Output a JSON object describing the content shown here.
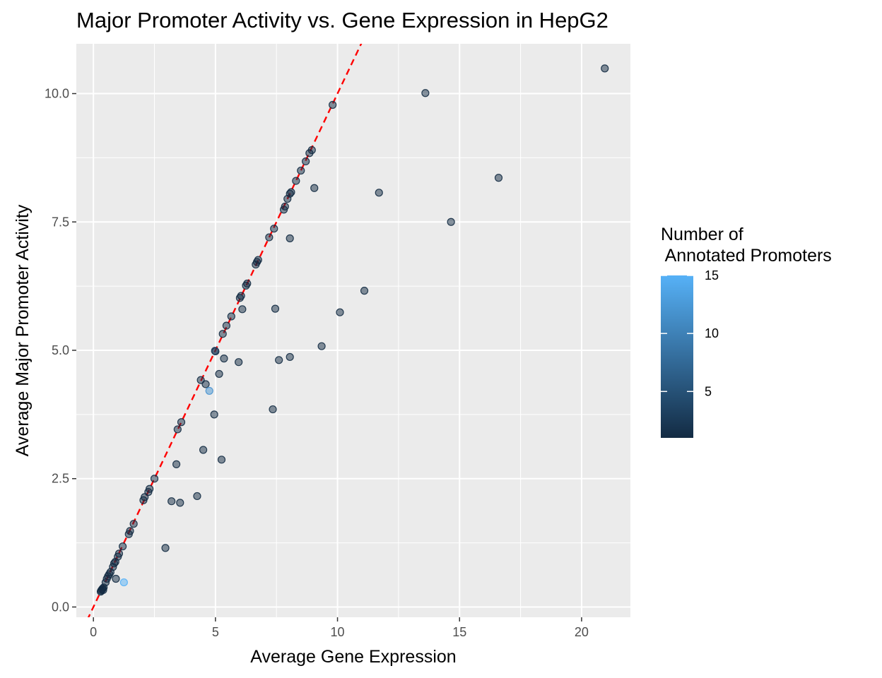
{
  "chart_data": {
    "type": "scatter",
    "title": "Major Promoter Activity vs. Gene Expression in HepG2",
    "xlabel": "Average Gene Expression",
    "ylabel": "Average Major Promoter Activity",
    "xlim": [
      -0.7,
      22
    ],
    "ylim": [
      -0.2,
      10.97
    ],
    "x_ticks": [
      0,
      5,
      10,
      15,
      20
    ],
    "x_tick_labels": [
      "0",
      "5",
      "10",
      "15",
      "20"
    ],
    "y_ticks": [
      0,
      2.5,
      5,
      7.5,
      10
    ],
    "y_tick_labels": [
      "0.0",
      "2.5",
      "5.0",
      "7.5",
      "10.0"
    ],
    "background": "#ebebeb",
    "grid": true,
    "reference_line": {
      "type": "identity",
      "slope": 1,
      "intercept": 0,
      "color": "#ff0000",
      "style": "dashed"
    },
    "color_scale": {
      "title_lines": [
        "Number of",
        " Annotated Promoters"
      ],
      "range": [
        1,
        15
      ],
      "low_color": "#132b43",
      "high_color": "#56b1f7",
      "breaks": [
        5,
        10,
        15
      ],
      "break_labels": [
        "5",
        "10",
        "15"
      ],
      "legend_position": "right"
    },
    "point_alpha": 0.5,
    "points": [
      {
        "x": 0.3,
        "y": 0.3,
        "n": 1
      },
      {
        "x": 0.32,
        "y": 0.32,
        "n": 1
      },
      {
        "x": 0.35,
        "y": 0.34,
        "n": 1
      },
      {
        "x": 0.38,
        "y": 0.36,
        "n": 1
      },
      {
        "x": 0.42,
        "y": 0.38,
        "n": 1
      },
      {
        "x": 0.4,
        "y": 0.33,
        "n": 1
      },
      {
        "x": 0.5,
        "y": 0.48,
        "n": 1
      },
      {
        "x": 0.55,
        "y": 0.55,
        "n": 1
      },
      {
        "x": 0.6,
        "y": 0.6,
        "n": 1
      },
      {
        "x": 0.65,
        "y": 0.64,
        "n": 1
      },
      {
        "x": 0.7,
        "y": 0.68,
        "n": 1
      },
      {
        "x": 0.8,
        "y": 0.78,
        "n": 1
      },
      {
        "x": 0.85,
        "y": 0.85,
        "n": 1
      },
      {
        "x": 0.9,
        "y": 0.88,
        "n": 1
      },
      {
        "x": 0.92,
        "y": 0.55,
        "n": 1
      },
      {
        "x": 1.0,
        "y": 0.98,
        "n": 1
      },
      {
        "x": 1.05,
        "y": 1.04,
        "n": 1
      },
      {
        "x": 1.2,
        "y": 1.18,
        "n": 1
      },
      {
        "x": 1.25,
        "y": 0.48,
        "n": 15
      },
      {
        "x": 1.45,
        "y": 1.42,
        "n": 1
      },
      {
        "x": 1.5,
        "y": 1.48,
        "n": 1
      },
      {
        "x": 1.65,
        "y": 1.62,
        "n": 1
      },
      {
        "x": 2.05,
        "y": 2.08,
        "n": 1
      },
      {
        "x": 2.1,
        "y": 2.14,
        "n": 1
      },
      {
        "x": 2.25,
        "y": 2.24,
        "n": 1
      },
      {
        "x": 2.3,
        "y": 2.3,
        "n": 1
      },
      {
        "x": 2.5,
        "y": 2.5,
        "n": 1
      },
      {
        "x": 2.95,
        "y": 1.15,
        "n": 1
      },
      {
        "x": 3.2,
        "y": 2.06,
        "n": 1
      },
      {
        "x": 3.4,
        "y": 2.78,
        "n": 1
      },
      {
        "x": 3.45,
        "y": 3.46,
        "n": 1
      },
      {
        "x": 3.55,
        "y": 2.03,
        "n": 1
      },
      {
        "x": 3.6,
        "y": 3.6,
        "n": 1
      },
      {
        "x": 4.25,
        "y": 2.16,
        "n": 1
      },
      {
        "x": 4.4,
        "y": 4.42,
        "n": 1
      },
      {
        "x": 4.5,
        "y": 3.06,
        "n": 1
      },
      {
        "x": 4.6,
        "y": 4.34,
        "n": 1
      },
      {
        "x": 4.75,
        "y": 4.21,
        "n": 12
      },
      {
        "x": 4.95,
        "y": 3.75,
        "n": 1
      },
      {
        "x": 5.0,
        "y": 4.98,
        "n": 1
      },
      {
        "x": 4.98,
        "y": 4.99,
        "n": 3
      },
      {
        "x": 5.15,
        "y": 4.54,
        "n": 1
      },
      {
        "x": 5.25,
        "y": 2.87,
        "n": 1
      },
      {
        "x": 5.3,
        "y": 5.32,
        "n": 1
      },
      {
        "x": 5.35,
        "y": 4.84,
        "n": 1
      },
      {
        "x": 5.45,
        "y": 5.48,
        "n": 1
      },
      {
        "x": 5.65,
        "y": 5.66,
        "n": 1
      },
      {
        "x": 5.95,
        "y": 4.77,
        "n": 1
      },
      {
        "x": 6.0,
        "y": 6.02,
        "n": 1
      },
      {
        "x": 6.05,
        "y": 6.06,
        "n": 1
      },
      {
        "x": 6.1,
        "y": 5.8,
        "n": 1
      },
      {
        "x": 6.25,
        "y": 6.26,
        "n": 1
      },
      {
        "x": 6.3,
        "y": 6.3,
        "n": 1
      },
      {
        "x": 6.65,
        "y": 6.67,
        "n": 1
      },
      {
        "x": 6.7,
        "y": 6.72,
        "n": 1
      },
      {
        "x": 6.75,
        "y": 6.76,
        "n": 1
      },
      {
        "x": 7.2,
        "y": 7.2,
        "n": 1
      },
      {
        "x": 7.35,
        "y": 3.85,
        "n": 1
      },
      {
        "x": 7.4,
        "y": 7.37,
        "n": 1
      },
      {
        "x": 7.45,
        "y": 5.81,
        "n": 1
      },
      {
        "x": 7.6,
        "y": 4.81,
        "n": 1
      },
      {
        "x": 7.8,
        "y": 7.74,
        "n": 1
      },
      {
        "x": 7.85,
        "y": 7.8,
        "n": 1
      },
      {
        "x": 7.95,
        "y": 7.95,
        "n": 1
      },
      {
        "x": 8.05,
        "y": 8.05,
        "n": 1
      },
      {
        "x": 8.1,
        "y": 8.08,
        "n": 1
      },
      {
        "x": 8.05,
        "y": 7.18,
        "n": 1
      },
      {
        "x": 8.05,
        "y": 4.87,
        "n": 1
      },
      {
        "x": 8.3,
        "y": 8.3,
        "n": 1
      },
      {
        "x": 8.5,
        "y": 8.5,
        "n": 1
      },
      {
        "x": 8.7,
        "y": 8.68,
        "n": 1
      },
      {
        "x": 8.85,
        "y": 8.84,
        "n": 1
      },
      {
        "x": 8.95,
        "y": 8.9,
        "n": 1
      },
      {
        "x": 9.05,
        "y": 8.16,
        "n": 1
      },
      {
        "x": 9.35,
        "y": 5.08,
        "n": 1
      },
      {
        "x": 9.8,
        "y": 9.78,
        "n": 1
      },
      {
        "x": 10.1,
        "y": 5.74,
        "n": 1
      },
      {
        "x": 11.1,
        "y": 6.16,
        "n": 1
      },
      {
        "x": 11.7,
        "y": 8.07,
        "n": 1
      },
      {
        "x": 13.6,
        "y": 10.01,
        "n": 1
      },
      {
        "x": 14.65,
        "y": 7.5,
        "n": 1
      },
      {
        "x": 16.6,
        "y": 8.36,
        "n": 1
      },
      {
        "x": 20.95,
        "y": 10.49,
        "n": 1
      }
    ]
  }
}
